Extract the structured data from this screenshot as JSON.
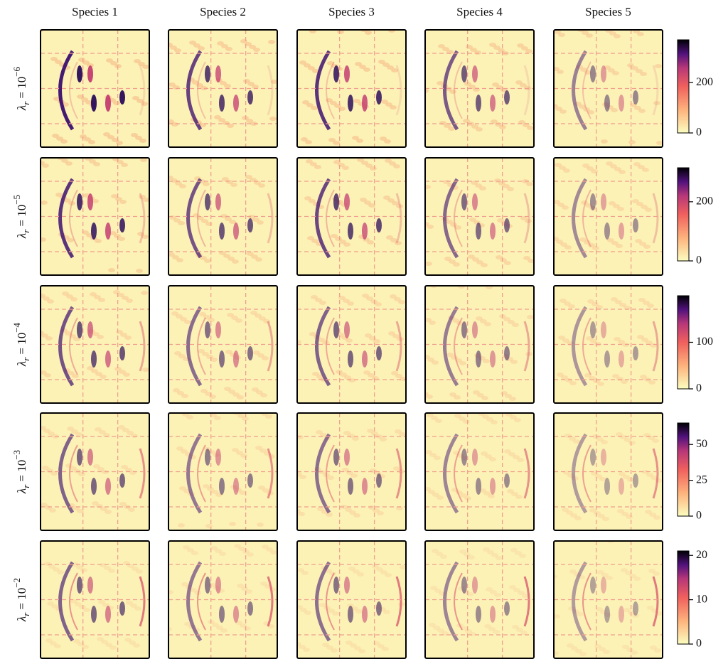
{
  "chart_data": {
    "type": "heatmap",
    "columns": [
      "Species 1",
      "Species 2",
      "Species 3",
      "Species 4",
      "Species 5"
    ],
    "colormap": "magma_r",
    "rows": [
      {
        "label": [
          "λ",
          "r",
          "= 10",
          "−6"
        ],
        "clim": [
          0,
          370
        ],
        "cticks": [
          0,
          200
        ]
      },
      {
        "label": [
          "λ",
          "r",
          "= 10",
          "−5"
        ],
        "clim": [
          0,
          315
        ],
        "cticks": [
          0,
          200
        ]
      },
      {
        "label": [
          "λ",
          "r",
          "= 10",
          "−4"
        ],
        "clim": [
          0,
          200
        ],
        "cticks": [
          0,
          100
        ]
      },
      {
        "label": [
          "λ",
          "r",
          "= 10",
          "−3"
        ],
        "clim": [
          0,
          65
        ],
        "cticks": [
          0,
          25,
          50
        ]
      },
      {
        "label": [
          "λ",
          "r",
          "= 10",
          "−2"
        ],
        "clim": [
          0,
          21
        ],
        "cticks": [
          0,
          10,
          20
        ]
      }
    ]
  }
}
